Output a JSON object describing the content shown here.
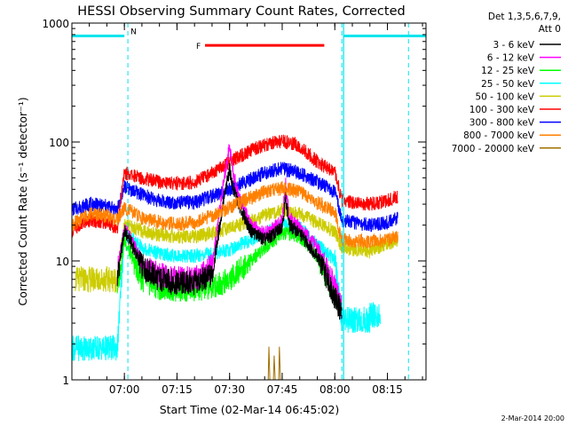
{
  "chart_data": {
    "type": "line",
    "title": "HESSI Observing Summary Count Rates, Corrected",
    "xlabel": "Start Time (02-Mar-14 06:45:02)",
    "ylabel": "Corrected Count Rate (s⁻¹ detector⁻¹)",
    "yscale": "log",
    "ylim": [
      1,
      1000
    ],
    "xlim": [
      "06:45:02",
      "08:26:00"
    ],
    "x_ticks": [
      "07:00",
      "07:15",
      "07:30",
      "07:45",
      "08:00",
      "08:15"
    ],
    "y_ticks": [
      "1",
      "10",
      "100",
      "1000"
    ],
    "grid": false,
    "legend_position": "right",
    "legend_header": [
      "Det 1,3,5,6,7,9,",
      "Att 0"
    ],
    "timestamp": "2-Mar-2014 20:00",
    "flags": {
      "N_label": "N",
      "F_label": "F",
      "N_segments": [
        [
          "06:45:02",
          "07:00:00"
        ],
        [
          "08:02:30",
          "08:26:00"
        ]
      ],
      "F_segment": [
        "07:23:00",
        "07:57:00"
      ],
      "N_level": 780,
      "F_level": 650,
      "night_boundaries": [
        "07:01:00",
        "08:02:00",
        "08:21:00"
      ]
    },
    "series": [
      {
        "name": "3 - 6 keV",
        "color": "#000000",
        "points": [
          [
            "06:58",
            7.2
          ],
          [
            "07:00",
            18.0
          ],
          [
            "07:02",
            14.0
          ],
          [
            "07:05",
            9.0
          ],
          [
            "07:10",
            7.0
          ],
          [
            "07:15",
            6.5
          ],
          [
            "07:20",
            6.5
          ],
          [
            "07:25",
            7.5
          ],
          [
            "07:28",
            28.0
          ],
          [
            "07:30",
            60.0
          ],
          [
            "07:31",
            40.0
          ],
          [
            "07:33",
            28.0
          ],
          [
            "07:36",
            18.0
          ],
          [
            "07:40",
            15.0
          ],
          [
            "07:43",
            17.0
          ],
          [
            "07:45",
            20.0
          ],
          [
            "07:46",
            34.0
          ],
          [
            "07:47",
            20.0
          ],
          [
            "07:50",
            17.0
          ],
          [
            "07:55",
            11.0
          ],
          [
            "07:58",
            7.0
          ],
          [
            "08:00",
            5.0
          ],
          [
            "08:02",
            3.6
          ]
        ]
      },
      {
        "name": "6 - 12 keV",
        "color": "#ff00ff",
        "points": [
          [
            "06:58",
            8.0
          ],
          [
            "07:00",
            19.0
          ],
          [
            "07:02",
            15.0
          ],
          [
            "07:05",
            9.5
          ],
          [
            "07:10",
            7.5
          ],
          [
            "07:15",
            7.0
          ],
          [
            "07:20",
            7.0
          ],
          [
            "07:25",
            9.0
          ],
          [
            "07:28",
            40.0
          ],
          [
            "07:30",
            95.0
          ],
          [
            "07:31",
            55.0
          ],
          [
            "07:33",
            32.0
          ],
          [
            "07:36",
            20.0
          ],
          [
            "07:40",
            17.0
          ],
          [
            "07:43",
            19.0
          ],
          [
            "07:45",
            22.0
          ],
          [
            "07:46",
            45.0
          ],
          [
            "07:47",
            23.0
          ],
          [
            "07:50",
            19.0
          ],
          [
            "07:55",
            13.0
          ],
          [
            "07:58",
            8.0
          ],
          [
            "08:00",
            6.0
          ],
          [
            "08:02",
            4.0
          ]
        ]
      },
      {
        "name": "12 - 25 keV",
        "color": "#00ff00",
        "points": [
          [
            "06:58",
            6.0
          ],
          [
            "07:00",
            15.0
          ],
          [
            "07:02",
            11.0
          ],
          [
            "07:05",
            7.0
          ],
          [
            "07:10",
            6.0
          ],
          [
            "07:15",
            5.8
          ],
          [
            "07:20",
            5.8
          ],
          [
            "07:25",
            6.0
          ],
          [
            "07:30",
            7.0
          ],
          [
            "07:35",
            9.5
          ],
          [
            "07:40",
            13.0
          ],
          [
            "07:45",
            17.0
          ],
          [
            "07:50",
            16.0
          ],
          [
            "07:55",
            11.0
          ],
          [
            "07:58",
            7.0
          ],
          [
            "08:00",
            5.2
          ],
          [
            "08:02",
            4.0
          ]
        ]
      },
      {
        "name": "25 - 50 keV",
        "color": "#00ffff",
        "points": [
          [
            "06:45",
            1.85
          ],
          [
            "06:58",
            1.85
          ],
          [
            "07:00",
            17.0
          ],
          [
            "07:05",
            13.0
          ],
          [
            "07:10",
            11.5
          ],
          [
            "07:15",
            11.0
          ],
          [
            "07:20",
            11.0
          ],
          [
            "07:25",
            11.5
          ],
          [
            "07:30",
            12.5
          ],
          [
            "07:35",
            14.5
          ],
          [
            "07:40",
            17.0
          ],
          [
            "07:45",
            20.0
          ],
          [
            "07:50",
            19.0
          ],
          [
            "07:55",
            14.0
          ],
          [
            "08:00",
            10.0
          ],
          [
            "08:02",
            3.2
          ],
          [
            "08:10",
            3.2
          ],
          [
            "08:10",
            3.5
          ],
          [
            "08:13",
            3.5
          ]
        ]
      },
      {
        "name": "50 - 100 keV",
        "color": "#cccc00",
        "points": [
          [
            "06:46",
            7.0
          ],
          [
            "06:58",
            7.0
          ],
          [
            "07:00",
            20.0
          ],
          [
            "07:05",
            18.0
          ],
          [
            "07:10",
            16.5
          ],
          [
            "07:15",
            16.0
          ],
          [
            "07:20",
            16.0
          ],
          [
            "07:25",
            17.0
          ],
          [
            "07:30",
            19.0
          ],
          [
            "07:35",
            21.0
          ],
          [
            "07:40",
            24.0
          ],
          [
            "07:45",
            27.0
          ],
          [
            "07:50",
            25.0
          ],
          [
            "07:55",
            21.0
          ],
          [
            "08:00",
            17.5
          ],
          [
            "08:02",
            13.0
          ],
          [
            "08:10",
            12.0
          ],
          [
            "08:15",
            14.0
          ],
          [
            "08:18",
            15.0
          ]
        ]
      },
      {
        "name": "100 - 300 keV",
        "color": "#ff0000",
        "points": [
          [
            "06:45",
            18.0
          ],
          [
            "06:50",
            22.0
          ],
          [
            "06:55",
            21.0
          ],
          [
            "06:58",
            19.0
          ],
          [
            "07:00",
            55.0
          ],
          [
            "07:05",
            50.0
          ],
          [
            "07:10",
            46.0
          ],
          [
            "07:15",
            45.0
          ],
          [
            "07:20",
            46.0
          ],
          [
            "07:25",
            55.0
          ],
          [
            "07:30",
            68.0
          ],
          [
            "07:35",
            82.0
          ],
          [
            "07:40",
            95.0
          ],
          [
            "07:45",
            102.0
          ],
          [
            "07:50",
            93.0
          ],
          [
            "07:55",
            68.0
          ],
          [
            "08:00",
            55.0
          ],
          [
            "08:02",
            32.0
          ],
          [
            "08:10",
            30.0
          ],
          [
            "08:15",
            32.0
          ],
          [
            "08:18",
            35.0
          ]
        ]
      },
      {
        "name": "300 - 800 keV",
        "color": "#0000ff",
        "points": [
          [
            "06:45",
            27.0
          ],
          [
            "06:50",
            30.0
          ],
          [
            "06:55",
            29.0
          ],
          [
            "06:58",
            27.0
          ],
          [
            "07:00",
            42.0
          ],
          [
            "07:05",
            36.0
          ],
          [
            "07:10",
            32.0
          ],
          [
            "07:15",
            31.0
          ],
          [
            "07:20",
            31.0
          ],
          [
            "07:25",
            35.0
          ],
          [
            "07:30",
            40.0
          ],
          [
            "07:35",
            47.0
          ],
          [
            "07:40",
            55.0
          ],
          [
            "07:45",
            60.0
          ],
          [
            "07:50",
            55.0
          ],
          [
            "07:55",
            46.0
          ],
          [
            "08:00",
            38.0
          ],
          [
            "08:02",
            22.0
          ],
          [
            "08:10",
            20.0
          ],
          [
            "08:15",
            21.0
          ],
          [
            "08:18",
            23.0
          ]
        ]
      },
      {
        "name": "800 - 7000 keV",
        "color": "#ff8000",
        "points": [
          [
            "06:45",
            20.0
          ],
          [
            "06:50",
            25.0
          ],
          [
            "06:55",
            24.0
          ],
          [
            "06:58",
            22.0
          ],
          [
            "07:00",
            28.0
          ],
          [
            "07:05",
            23.0
          ],
          [
            "07:10",
            21.0
          ],
          [
            "07:15",
            20.5
          ],
          [
            "07:20",
            21.0
          ],
          [
            "07:25",
            24.0
          ],
          [
            "07:30",
            28.0
          ],
          [
            "07:35",
            33.0
          ],
          [
            "07:40",
            38.0
          ],
          [
            "07:45",
            41.0
          ],
          [
            "07:50",
            38.0
          ],
          [
            "07:55",
            31.0
          ],
          [
            "08:00",
            26.0
          ],
          [
            "08:02",
            15.0
          ],
          [
            "08:10",
            14.5
          ],
          [
            "08:15",
            15.0
          ],
          [
            "08:18",
            16.0
          ]
        ]
      },
      {
        "name": "7000 - 20000 keV",
        "color": "#a07000",
        "points": [
          [
            "07:41",
            1.0
          ],
          [
            "07:41.2",
            1.9
          ],
          [
            "07:41.5",
            1.0
          ],
          [
            "07:42.5",
            1.0
          ],
          [
            "07:42.7",
            1.6
          ],
          [
            "07:43",
            1.0
          ],
          [
            "07:44",
            1.0
          ],
          [
            "07:44.2",
            1.9
          ],
          [
            "07:44.5",
            1.0
          ]
        ]
      }
    ]
  }
}
